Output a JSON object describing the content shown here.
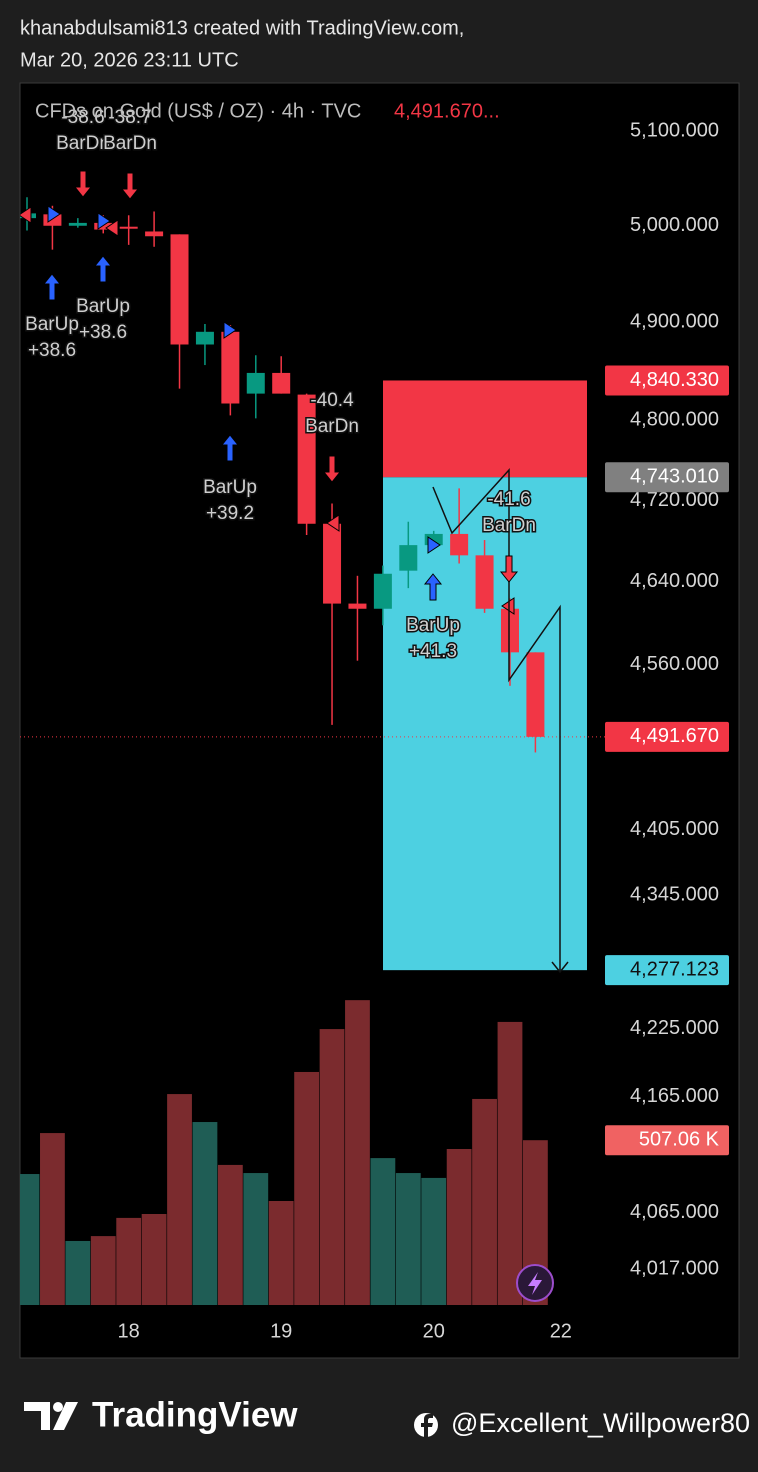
{
  "header": {
    "line1": "khanabdulsami813 created with TradingView.com,",
    "line2": "Mar 20, 2026 23:11 UTC"
  },
  "chart_data": {
    "type": "candlestick",
    "title": "CFDs on Gold (US$ / OZ) · 4h · TVC",
    "title_price": "4,491.670...",
    "categories": [
      null,
      null,
      null,
      null,
      "18",
      null,
      null,
      null,
      null,
      null,
      "19",
      null,
      null,
      null,
      null,
      null,
      "20",
      null,
      null,
      null,
      null,
      "22"
    ],
    "open": [
      5008,
      5012,
      5000,
      5003,
      4999,
      4994,
      4991,
      4877,
      4890,
      4827,
      4848,
      4826,
      4697,
      4619,
      4614,
      4651,
      4676,
      4687,
      4666,
      4614,
      4572,
      null
    ],
    "high": [
      5030,
      5021,
      5008,
      5011,
      5011,
      5015,
      4991,
      4898,
      4897,
      4866,
      4865,
      4827,
      4717,
      4646,
      4656,
      4699,
      4690,
      4732,
      4681,
      4624,
      4572,
      null
    ],
    "low": [
      4995,
      4975,
      4998,
      4992,
      4980,
      4978,
      4832,
      4856,
      4805,
      4802,
      4827,
      4686,
      4503,
      4564,
      4598,
      4634,
      4674,
      4658,
      4610,
      4540,
      4477,
      null
    ],
    "close": [
      5013,
      5000,
      5003,
      4996,
      4997,
      4989,
      4877,
      4890,
      4817,
      4848,
      4827,
      4697,
      4619,
      4614,
      4648,
      4676,
      4687,
      4666,
      4614,
      4572,
      4491.67,
      null
    ],
    "up_color": "#089981",
    "down_color": "#f23645",
    "volume": {
      "axis": "y2",
      "up_color": "#1f5d55",
      "down_color": "#7b2b2e",
      "values": [
        403000,
        529000,
        197000,
        212000,
        268000,
        280000,
        649000,
        563000,
        431000,
        406000,
        320000,
        717000,
        849000,
        938000,
        452000,
        406000,
        391000,
        480000,
        634000,
        871000,
        507060,
        null
      ]
    },
    "log_scale": true,
    "grid": false,
    "ylim": [
      3987,
      5152
    ],
    "y2lim": [
      0,
      1000000
    ],
    "yticks": [
      {
        "value": 5100,
        "label": "5,100.000"
      },
      {
        "value": 5000,
        "label": "5,000.000"
      },
      {
        "value": 4900,
        "label": "4,900.000"
      },
      {
        "value": 4800,
        "label": "4,800.000"
      },
      {
        "value": 4720,
        "label": "4,720.000"
      },
      {
        "value": 4640,
        "label": "4,640.000"
      },
      {
        "value": 4560,
        "label": "4,560.000"
      },
      {
        "value": 4405,
        "label": "4,405.000"
      },
      {
        "value": 4345,
        "label": "4,345.000"
      },
      {
        "value": 4225,
        "label": "4,225.000"
      },
      {
        "value": 4165,
        "label": "4,165.000"
      },
      {
        "value": 4065,
        "label": "4,065.000"
      },
      {
        "value": 4017,
        "label": "4,017.000"
      }
    ],
    "price_labels": [
      {
        "value": 4840.33,
        "label": "4,840.330",
        "color": "#f23645"
      },
      {
        "value": 4743.01,
        "label": "4,743.010",
        "color": "#808080"
      },
      {
        "value": 4491.67,
        "label": "4,491.670",
        "color": "#f23645"
      },
      {
        "value": 4277.123,
        "label": "4,277.123",
        "color": "#4dd0e1"
      },
      {
        "value": 507060,
        "label": "507.06 K",
        "color": "#f06262",
        "axis": "y2"
      }
    ],
    "position": {
      "stop_color": "#f23645",
      "target_color": "#4dd0e1"
    },
    "annotations": [
      {
        "lines": [
          "BarUp",
          "+38.6"
        ],
        "direction": "up",
        "color": "#2962ff"
      },
      {
        "lines": [
          "BarUp",
          "+38.6"
        ],
        "direction": "up",
        "color": "#2962ff"
      },
      {
        "lines": [
          "-38.6",
          "BarDn"
        ],
        "direction": "down",
        "color": "#f23645"
      },
      {
        "lines": [
          "-38.7",
          "BarDn"
        ],
        "direction": "down",
        "color": "#f23645"
      },
      {
        "lines": [
          "BarUp",
          "+39.2"
        ],
        "direction": "up",
        "color": "#2962ff"
      },
      {
        "lines": [
          "-40.4",
          "BarDn"
        ],
        "direction": "down",
        "color": "#f23645"
      },
      {
        "lines": [
          "BarUp",
          "+41.3"
        ],
        "direction": "up",
        "color": "#2962ff"
      },
      {
        "lines": [
          "-41.6",
          "BarDn"
        ],
        "direction": "down",
        "color": "#f23645"
      }
    ]
  },
  "footer": {
    "brand": "TradingView",
    "handle": "@Excellent_Willpower80"
  }
}
